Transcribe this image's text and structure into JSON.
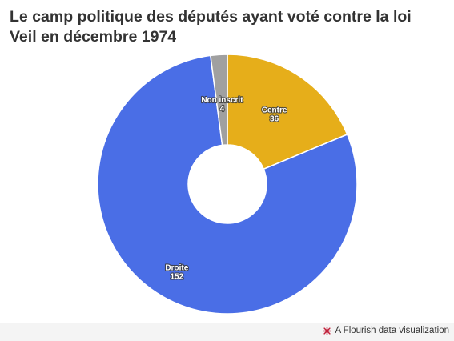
{
  "title": "Le camp politique des députés ayant voté contre la loi Veil en décembre 1974",
  "chart_data": {
    "type": "pie",
    "donut": true,
    "title": "Le camp politique des députés ayant voté contre la loi Veil en décembre 1974",
    "categories": [
      "Centre",
      "Droite",
      "Non inscrit"
    ],
    "values": [
      36,
      152,
      4
    ],
    "colors": [
      "#e6ae1a",
      "#4a6ee6",
      "#a0a0a0"
    ],
    "start": "top, clockwise"
  },
  "footer": {
    "credit": "A Flourish data visualization",
    "icon": "flourish-burst-icon"
  }
}
